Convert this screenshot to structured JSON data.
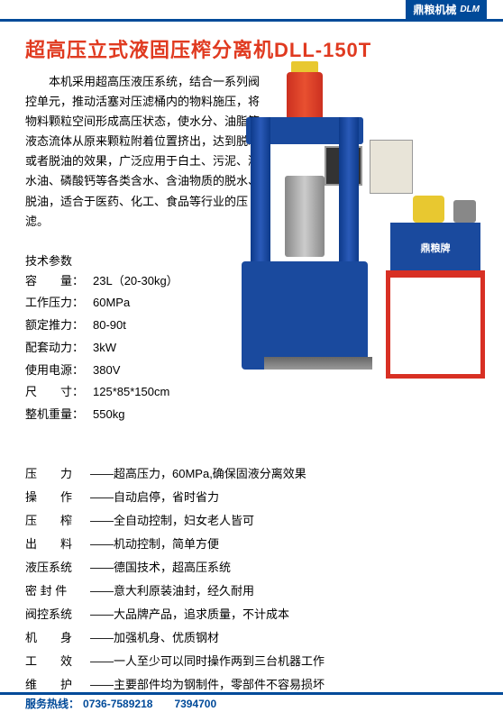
{
  "colors": {
    "accent": "#004a99",
    "title": "#e03a20",
    "text": "#000000",
    "footer_text": "#004a99"
  },
  "brand": {
    "name": "鼎粮机械",
    "logo_text": "DLM"
  },
  "title": "超高压立式液固压榨分离机DLL-150T",
  "description": "本机采用超高压液压系统，结合一系列阀控单元，推动活塞对压滤桶内的物料施压，将物料颗粒空间形成高压状态，使水分、油脂等液态流体从原来颗粒附着位置挤出，达到脱水或者脱油的效果，广泛应用于白土、污泥、潲水油、磷酸钙等各类含水、含油物质的脱水、脱油，适合于医药、化工、食品等行业的压滤。",
  "specs_title": "技术参数",
  "specs": [
    {
      "label": "容　　量：",
      "value": "23L（20-30kg）"
    },
    {
      "label": "工作压力：",
      "value": "60MPa"
    },
    {
      "label": "额定推力：",
      "value": "80-90t"
    },
    {
      "label": "配套动力：",
      "value": "3kW"
    },
    {
      "label": "使用电源：",
      "value": "380V"
    },
    {
      "label": "尺　　寸：",
      "value": "125*85*150cm"
    },
    {
      "label": "整机重量：",
      "value": "550kg"
    }
  ],
  "tank_label": "鼎粮牌",
  "features": [
    {
      "label": "压　　力",
      "text": "——超高压力，60MPa,确保固液分离效果"
    },
    {
      "label": "操　　作",
      "text": "——自动启停，省时省力"
    },
    {
      "label": "压　　榨",
      "text": "——全自动控制，妇女老人皆可"
    },
    {
      "label": "出　　料",
      "text": "——机动控制，简单方便"
    },
    {
      "label": "液压系统",
      "text": "——德国技术，超高压系统"
    },
    {
      "label": "密 封 件",
      "text": "——意大利原装油封，经久耐用"
    },
    {
      "label": "阀控系统",
      "text": "——大品牌产品，追求质量，不计成本"
    },
    {
      "label": "机　　身",
      "text": "——加强机身、优质钢材"
    },
    {
      "label": "工　　效",
      "text": "——一人至少可以同时操作两到三台机器工作"
    },
    {
      "label": "维　　护",
      "text": "——主要部件均为钢制件，零部件不容易损坏"
    }
  ],
  "footer": {
    "hotline_label": "服务热线：",
    "phone1": "0736-7589218",
    "phone2": "7394700"
  }
}
